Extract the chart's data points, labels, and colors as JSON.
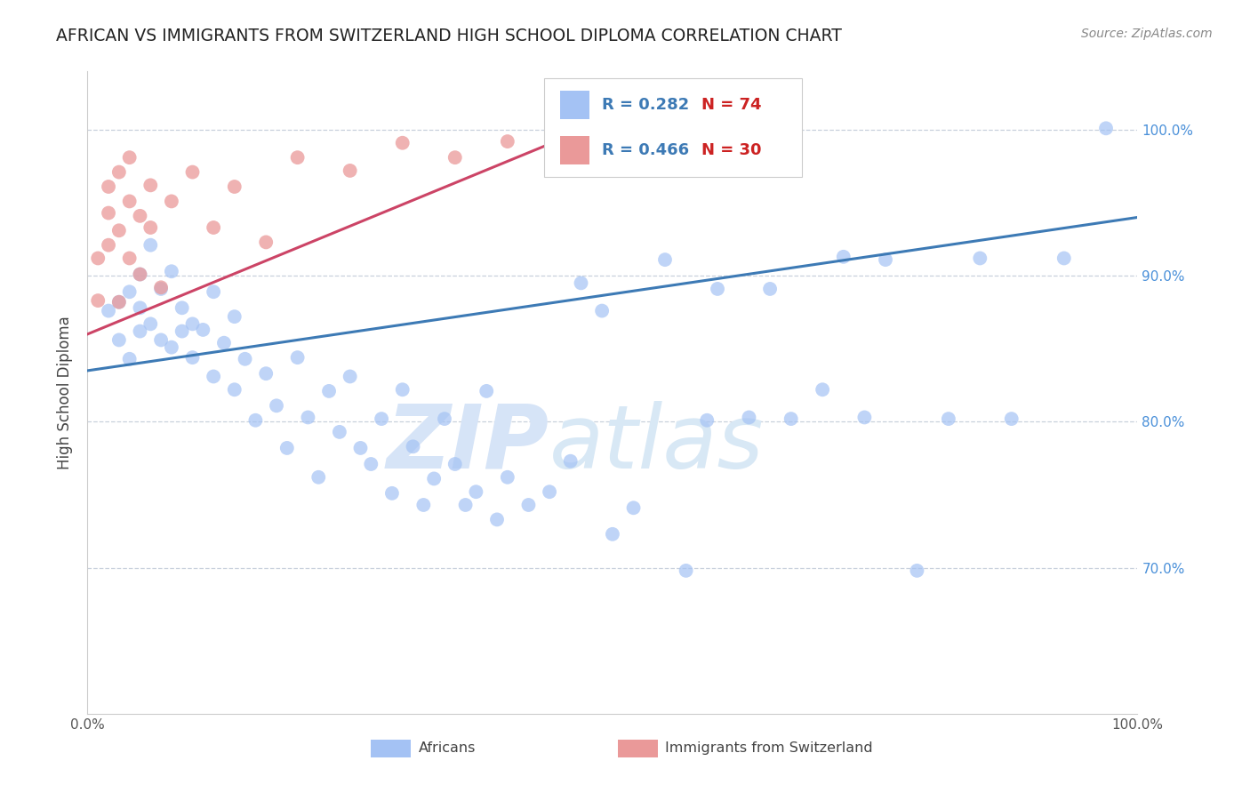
{
  "title": "AFRICAN VS IMMIGRANTS FROM SWITZERLAND HIGH SCHOOL DIPLOMA CORRELATION CHART",
  "source": "Source: ZipAtlas.com",
  "ylabel": "High School Diploma",
  "legend_r_blue": "R = 0.282",
  "legend_n_blue": "N = 74",
  "legend_r_pink": "R = 0.466",
  "legend_n_pink": "N = 30",
  "blue_color": "#a4c2f4",
  "pink_color": "#ea9999",
  "blue_line_color": "#3d7ab5",
  "pink_line_color": "#cc4466",
  "watermark_zip": "ZIP",
  "watermark_atlas": "atlas",
  "watermark_color": "#d6e4f7",
  "background_color": "#ffffff",
  "grid_color": "#c8d0dc",
  "xlim": [
    0.0,
    1.0
  ],
  "ylim": [
    0.6,
    1.04
  ],
  "y_ticks": [
    0.7,
    0.8,
    0.9,
    1.0
  ],
  "africans_x": [
    0.02,
    0.03,
    0.03,
    0.04,
    0.04,
    0.05,
    0.05,
    0.05,
    0.06,
    0.06,
    0.07,
    0.07,
    0.08,
    0.08,
    0.09,
    0.09,
    0.1,
    0.1,
    0.11,
    0.12,
    0.12,
    0.13,
    0.14,
    0.14,
    0.15,
    0.16,
    0.17,
    0.18,
    0.19,
    0.2,
    0.21,
    0.22,
    0.23,
    0.24,
    0.25,
    0.26,
    0.27,
    0.28,
    0.29,
    0.3,
    0.31,
    0.32,
    0.33,
    0.34,
    0.35,
    0.36,
    0.37,
    0.38,
    0.39,
    0.4,
    0.42,
    0.44,
    0.46,
    0.47,
    0.49,
    0.5,
    0.52,
    0.55,
    0.57,
    0.59,
    0.6,
    0.63,
    0.65,
    0.67,
    0.7,
    0.72,
    0.74,
    0.76,
    0.79,
    0.82,
    0.85,
    0.88,
    0.93,
    0.97
  ],
  "africans_y": [
    0.876,
    0.882,
    0.856,
    0.889,
    0.843,
    0.901,
    0.862,
    0.878,
    0.921,
    0.867,
    0.891,
    0.856,
    0.851,
    0.903,
    0.862,
    0.878,
    0.844,
    0.867,
    0.863,
    0.889,
    0.831,
    0.854,
    0.872,
    0.822,
    0.843,
    0.801,
    0.833,
    0.811,
    0.782,
    0.844,
    0.803,
    0.762,
    0.821,
    0.793,
    0.831,
    0.782,
    0.771,
    0.802,
    0.751,
    0.822,
    0.783,
    0.743,
    0.761,
    0.802,
    0.771,
    0.743,
    0.752,
    0.821,
    0.733,
    0.762,
    0.743,
    0.752,
    0.773,
    0.895,
    0.876,
    0.723,
    0.741,
    0.911,
    0.698,
    0.801,
    0.891,
    0.803,
    0.891,
    0.802,
    0.822,
    0.913,
    0.803,
    0.911,
    0.698,
    0.802,
    0.912,
    0.802,
    0.912,
    1.001
  ],
  "swiss_x": [
    0.01,
    0.01,
    0.02,
    0.02,
    0.02,
    0.03,
    0.03,
    0.03,
    0.04,
    0.04,
    0.04,
    0.05,
    0.05,
    0.06,
    0.06,
    0.07,
    0.08,
    0.1,
    0.12,
    0.14,
    0.17,
    0.2,
    0.25,
    0.3,
    0.35,
    0.4,
    0.45,
    0.5,
    0.6,
    0.65
  ],
  "swiss_y": [
    0.883,
    0.912,
    0.943,
    0.921,
    0.961,
    0.882,
    0.931,
    0.971,
    0.912,
    0.951,
    0.981,
    0.901,
    0.941,
    0.933,
    0.962,
    0.892,
    0.951,
    0.971,
    0.933,
    0.961,
    0.923,
    0.981,
    0.972,
    0.991,
    0.981,
    0.992,
    0.991,
    1.001,
    1.001,
    1.001
  ],
  "blue_trend_x": [
    0.0,
    1.0
  ],
  "blue_trend_y": [
    0.835,
    0.94
  ],
  "pink_trend_x": [
    0.0,
    0.5
  ],
  "pink_trend_y": [
    0.86,
    1.008
  ]
}
